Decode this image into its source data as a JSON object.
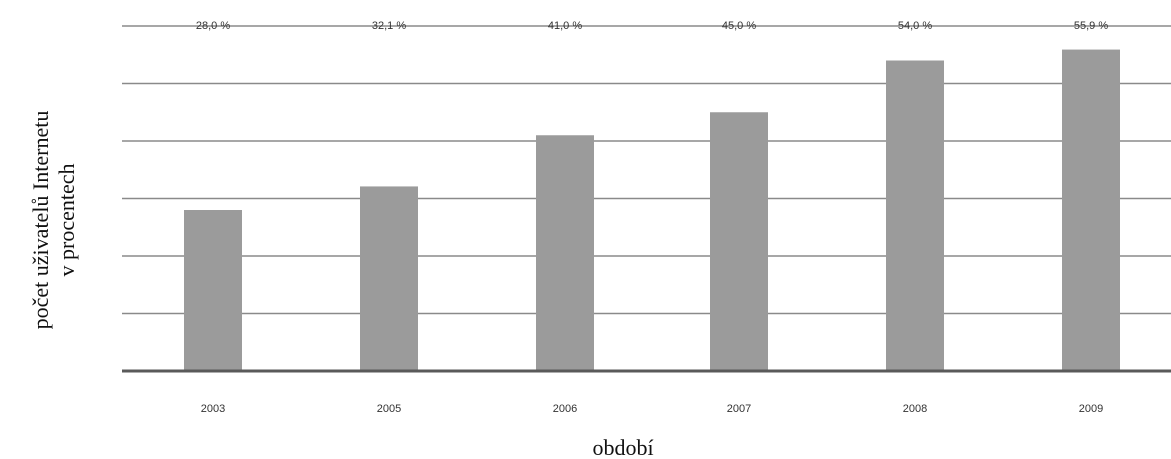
{
  "chart_data": {
    "type": "bar",
    "categories": [
      "2003",
      "2005",
      "2006",
      "2007",
      "2008",
      "2009"
    ],
    "values": [
      28.0,
      32.1,
      41.0,
      45.0,
      54.0,
      55.9
    ],
    "data_labels": [
      "28,0 %",
      "32,1 %",
      "41,0 %",
      "45,0 %",
      "54,0 %",
      "55,9 %"
    ],
    "title": "",
    "xlabel": "období",
    "ylabel": [
      "počet uživatelů Internetu",
      "v procentech"
    ],
    "ylim": [
      0,
      60
    ],
    "grid": true,
    "colors": {
      "bar": "#9b9b9b",
      "grid": "#8a8a8a",
      "baseline": "#5a5a5a"
    }
  }
}
